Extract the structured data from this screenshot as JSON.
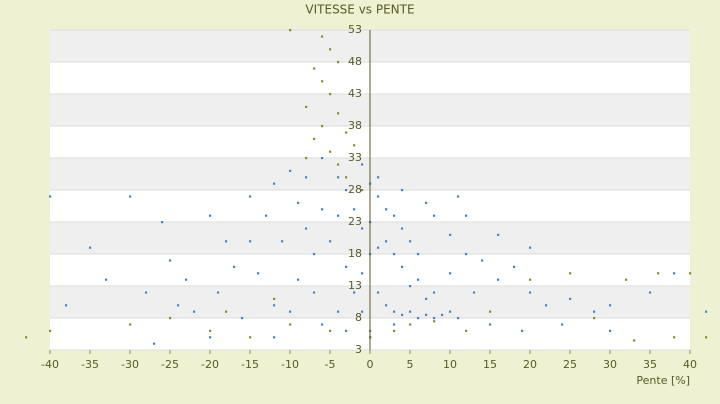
{
  "chart_data": {
    "type": "scatter",
    "title": "VITESSE vs PENTE",
    "x_label": "Pente [%]",
    "xlim": [
      -40,
      40
    ],
    "xticks": [
      -40,
      -35,
      -30,
      -25,
      -20,
      -15,
      -10,
      -5,
      0,
      5,
      10,
      15,
      20,
      25,
      30,
      35,
      40
    ],
    "ylim": [
      3,
      53
    ],
    "yticks": [
      3,
      8,
      13,
      18,
      23,
      28,
      33,
      38,
      43,
      48,
      53
    ],
    "grid": true,
    "series": [
      {
        "color": "#3a86d6",
        "x": [
          -40,
          -30,
          -35,
          -33,
          -26,
          -25,
          -20,
          -18,
          -15,
          -12,
          -10,
          -8,
          -6,
          -4,
          -3,
          -2,
          -1,
          0,
          1,
          2,
          3,
          4,
          5,
          6,
          8,
          10,
          12,
          14,
          16,
          18,
          20,
          22,
          25,
          28,
          30,
          35,
          38,
          42,
          -38,
          -28,
          -22,
          -16,
          -12,
          -9,
          -7,
          -5,
          -3,
          -2,
          -1,
          0,
          1,
          2,
          3,
          4,
          5,
          6,
          7,
          8,
          9,
          10,
          11,
          -14,
          -11,
          -13,
          -17,
          -19,
          -23,
          -8,
          -6,
          -4,
          0,
          2,
          4,
          6,
          8,
          10,
          13,
          -10,
          -6,
          -3,
          0,
          3,
          15,
          19,
          24,
          30,
          -27,
          -20,
          -12,
          -4,
          -1,
          1,
          3,
          5,
          7,
          -7,
          -9,
          -1,
          1,
          4,
          7,
          -15,
          -24,
          12,
          16,
          20,
          11
        ],
        "values": [
          27,
          27,
          19,
          14,
          23,
          17,
          24,
          20,
          27,
          29,
          31,
          30,
          33,
          30,
          28,
          25,
          22,
          29,
          27,
          25,
          24,
          22,
          20,
          18,
          24,
          21,
          18,
          17,
          14,
          16,
          12,
          10,
          11,
          9,
          10,
          12,
          15,
          9,
          10,
          12,
          9,
          8,
          10,
          14,
          18,
          20,
          16,
          12,
          9,
          18,
          12,
          10,
          9,
          8.5,
          9,
          8,
          8.5,
          8,
          8.5,
          9,
          8,
          15,
          20,
          24,
          16,
          12,
          14,
          22,
          25,
          24,
          23,
          20,
          16,
          14,
          12,
          15,
          12,
          9,
          7,
          6,
          5,
          7,
          7,
          6,
          7,
          6,
          4,
          5,
          5,
          9,
          15,
          19,
          18,
          13,
          11,
          12,
          26,
          32,
          30,
          28,
          26,
          20,
          10,
          24,
          21,
          19,
          27
        ]
      },
      {
        "color": "#8c8c10",
        "x": [
          -10,
          -6,
          -5,
          -7,
          -4,
          -6,
          -5,
          -8,
          -4,
          -6,
          -3,
          -7,
          -5,
          -2,
          -8,
          -4,
          -3,
          -1,
          -40,
          -43,
          -20,
          -15,
          -10,
          -5,
          0,
          3,
          5,
          8,
          12,
          20,
          25,
          32,
          36,
          40,
          38,
          42,
          -25,
          -18,
          0,
          -12,
          15,
          28,
          -30,
          33
        ],
        "values": [
          53,
          52,
          50,
          47,
          48,
          45,
          43,
          41,
          40,
          38,
          37,
          36,
          34,
          35,
          33,
          32,
          30,
          28,
          6,
          5,
          6,
          5,
          7,
          6,
          5,
          6,
          7,
          7.5,
          6,
          14,
          15,
          14,
          15,
          15,
          5,
          5,
          8,
          9,
          6,
          11,
          9,
          8,
          7,
          4.5
        ]
      }
    ]
  }
}
